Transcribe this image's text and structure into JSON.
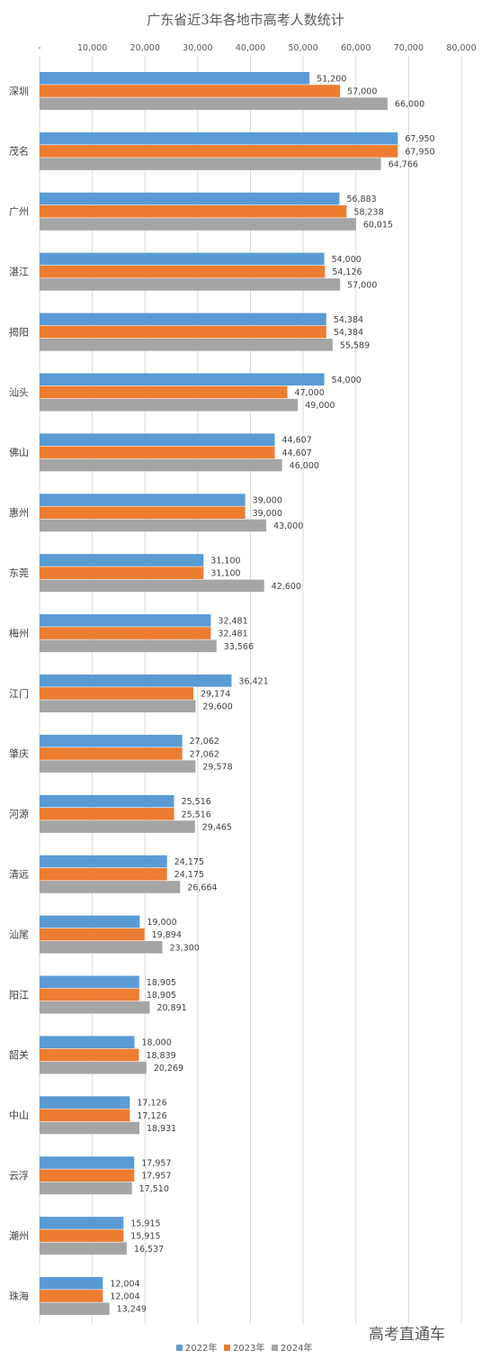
{
  "chart_data": {
    "type": "bar",
    "orientation": "horizontal",
    "title": "广东省近3年各地市高考人数统计",
    "categories": [
      "深圳",
      "茂名",
      "广州",
      "湛江",
      "揭阳",
      "汕头",
      "佛山",
      "惠州",
      "东莞",
      "梅州",
      "江门",
      "肇庆",
      "河源",
      "清远",
      "汕尾",
      "阳江",
      "韶关",
      "中山",
      "云浮",
      "潮州",
      "珠海"
    ],
    "series": [
      {
        "name": "2022年",
        "color": "#5B9BD5",
        "values": [
          51200,
          67950,
          56883,
          54000,
          54384,
          54000,
          44607,
          39000,
          31100,
          32481,
          36421,
          27062,
          25516,
          24175,
          19000,
          18905,
          18000,
          17126,
          17957,
          15915,
          12004
        ]
      },
      {
        "name": "2023年",
        "color": "#ED7D31",
        "values": [
          57000,
          67950,
          58238,
          54126,
          54384,
          47000,
          44607,
          39000,
          31100,
          32481,
          29174,
          27062,
          25516,
          24175,
          19894,
          18905,
          18839,
          17126,
          17957,
          15915,
          12004
        ]
      },
      {
        "name": "2024年",
        "color": "#A5A5A5",
        "values": [
          66000,
          64766,
          60015,
          57000,
          55589,
          49000,
          46000,
          43000,
          42600,
          33566,
          29600,
          29578,
          29465,
          26664,
          23300,
          20891,
          20269,
          18931,
          17510,
          16537,
          13249
        ]
      }
    ],
    "xlim": [
      0,
      80000
    ],
    "xticks": [
      0,
      10000,
      20000,
      30000,
      40000,
      50000,
      60000,
      70000,
      80000
    ],
    "xtick_labels": [
      "-",
      "10,000",
      "20,000",
      "30,000",
      "40,000",
      "50,000",
      "60,000",
      "70,000",
      "80,000"
    ],
    "axis_position": "top",
    "grid": true,
    "legend": "bottom"
  },
  "watermark": "高考直通车"
}
